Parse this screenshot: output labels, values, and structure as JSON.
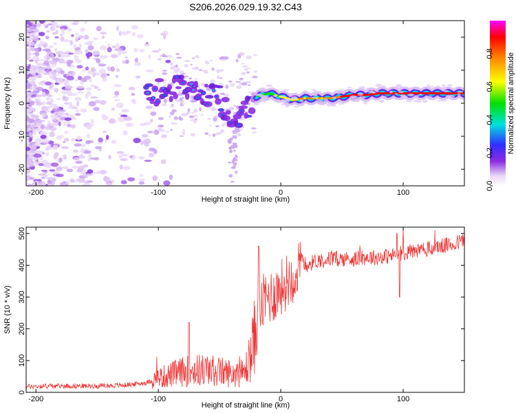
{
  "title": "S206.2026.029.19.32.C43",
  "chart_data": [
    {
      "type": "heatmap",
      "name": "spectrogram",
      "xlabel": "Height of straight line (km)",
      "ylabel": "Frequency (Hz)",
      "xlim": [
        -208,
        150
      ],
      "ylim": [
        -25,
        25
      ],
      "xticks": [
        -200,
        -100,
        0,
        100
      ],
      "yticks": [
        -20,
        -10,
        0,
        10,
        20
      ],
      "colorbar": {
        "label": "Normalized spectral amplitude",
        "range": [
          0,
          1
        ],
        "ticks": [
          "0.0",
          "0.2",
          "0.4",
          "0.6",
          "0.8"
        ],
        "colors": [
          "#ffffff",
          "#8a2be2",
          "#3030ff",
          "#00e0e0",
          "#00e000",
          "#ffff00",
          "#ff8000",
          "#ff0000",
          "#ff00ff"
        ]
      },
      "ridge": {
        "description": "dominant frequency track",
        "x": [
          -108,
          -100,
          -90,
          -80,
          -70,
          -60,
          -50,
          -40,
          -30,
          -20,
          -10,
          0,
          10,
          20,
          30,
          40,
          50,
          60,
          70,
          80,
          90,
          100,
          110,
          120,
          130,
          140,
          150
        ],
        "y": [
          3,
          4,
          3,
          5,
          6,
          3,
          1,
          -3,
          -3,
          2,
          3,
          2,
          1,
          1.5,
          1.5,
          1.5,
          2,
          2.5,
          2.5,
          3,
          3,
          3,
          3,
          3,
          3,
          3,
          3
        ],
        "amplitude": [
          0.3,
          0.35,
          0.3,
          0.3,
          0.3,
          0.3,
          0.35,
          0.4,
          0.45,
          0.5,
          0.55,
          0.6,
          0.6,
          0.7,
          0.7,
          0.75,
          0.8,
          0.85,
          0.85,
          0.9,
          0.9,
          0.85,
          0.9,
          0.9,
          0.9,
          0.9,
          0.9
        ]
      }
    },
    {
      "type": "line",
      "name": "snr",
      "xlabel": "Height of straight line (km)",
      "ylabel": "SNR (10 * v/v)",
      "xlim": [
        -208,
        150
      ],
      "ylim": [
        0,
        520
      ],
      "xticks": [
        -200,
        -100,
        0,
        100
      ],
      "yticks": [
        0,
        100,
        200,
        300,
        400,
        500
      ],
      "color": "#ee3333",
      "series": [
        {
          "name": "SNR",
          "x": [
            -208,
            -190,
            -170,
            -150,
            -130,
            -110,
            -100,
            -90,
            -80,
            -70,
            -60,
            -50,
            -40,
            -30,
            -25,
            -20,
            -15,
            -10,
            -5,
            0,
            5,
            10,
            15,
            20,
            30,
            40,
            50,
            60,
            70,
            80,
            90,
            100,
            110,
            120,
            130,
            140,
            150
          ],
          "y": [
            18,
            20,
            20,
            20,
            22,
            30,
            45,
            55,
            65,
            70,
            70,
            65,
            60,
            60,
            110,
            200,
            280,
            300,
            310,
            330,
            350,
            370,
            390,
            400,
            415,
            420,
            420,
            420,
            425,
            425,
            430,
            440,
            445,
            450,
            460,
            465,
            480
          ]
        }
      ],
      "annotations": {
        "max_spikes": [
          [
            -75,
            220
          ],
          [
            -18,
            460
          ],
          [
            95,
            500
          ]
        ],
        "dip": [
          [
            97,
            300
          ]
        ]
      }
    }
  ]
}
